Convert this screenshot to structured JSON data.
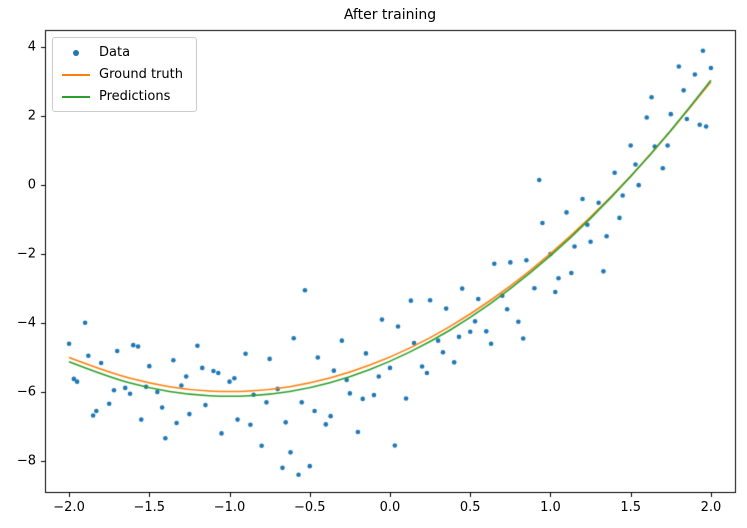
{
  "chart_data": {
    "type": "scatter",
    "title": "After training",
    "grid": false,
    "legend_position": "upper left",
    "xlim": [
      -2.15,
      2.15
    ],
    "ylim": [
      -8.9,
      4.5
    ],
    "xticks": [
      -2.0,
      -1.5,
      -1.0,
      -0.5,
      0.0,
      0.5,
      1.0,
      1.5,
      2.0
    ],
    "xtick_labels": [
      "−2.0",
      "−1.5",
      "−1.0",
      "−0.5",
      "0.0",
      "0.5",
      "1.0",
      "1.5",
      "2.0"
    ],
    "yticks": [
      -8,
      -6,
      -4,
      -2,
      0,
      2,
      4
    ],
    "ytick_labels": [
      "−8",
      "−6",
      "−4",
      "−2",
      "0",
      "2",
      "4"
    ],
    "legend": [
      {
        "label": "Data",
        "marker": "dot",
        "color": "#1f77b4"
      },
      {
        "label": "Ground truth",
        "marker": "line",
        "color": "#ff7f0e"
      },
      {
        "label": "Predictions",
        "marker": "line",
        "color": "#2ca02c"
      }
    ],
    "series": [
      {
        "name": "Data",
        "type": "scatter",
        "color": "#1f77b4",
        "points": [
          [
            -2.0,
            -4.6
          ],
          [
            -1.95,
            -5.7
          ],
          [
            -1.9,
            -3.99
          ],
          [
            -1.85,
            -6.68
          ],
          [
            -1.8,
            -5.16
          ],
          [
            -1.75,
            -6.34
          ],
          [
            -1.7,
            -4.81
          ],
          [
            -1.65,
            -5.88
          ],
          [
            -1.6,
            -4.64
          ],
          [
            -1.55,
            -6.8
          ],
          [
            -1.5,
            -5.25
          ],
          [
            -1.45,
            -6.0
          ],
          [
            -1.4,
            -7.34
          ],
          [
            -1.35,
            -5.08
          ],
          [
            -1.3,
            -5.81
          ],
          [
            -1.25,
            -6.64
          ],
          [
            -1.2,
            -4.66
          ],
          [
            -1.15,
            -6.38
          ],
          [
            -1.1,
            -5.39
          ],
          [
            -1.05,
            -7.2
          ],
          [
            -1.0,
            -5.7
          ],
          [
            -0.95,
            -6.8
          ],
          [
            -0.9,
            -4.89
          ],
          [
            -0.85,
            -6.08
          ],
          [
            -0.8,
            -7.56
          ],
          [
            -0.75,
            -5.04
          ],
          [
            -0.7,
            -5.91
          ],
          [
            -0.65,
            -6.88
          ],
          [
            -0.6,
            -4.44
          ],
          [
            -0.55,
            -6.3
          ],
          [
            -0.5,
            -8.15
          ],
          [
            -0.45,
            -5.0
          ],
          [
            -0.4,
            -6.94
          ],
          [
            -0.35,
            -5.38
          ],
          [
            -0.3,
            -4.51
          ],
          [
            -0.25,
            -6.04
          ],
          [
            -0.2,
            -7.16
          ],
          [
            -0.15,
            -4.88
          ],
          [
            -0.1,
            -6.09
          ],
          [
            -0.05,
            -3.9
          ],
          [
            0.0,
            -5.3
          ],
          [
            0.05,
            -4.1
          ],
          [
            0.1,
            -6.19
          ],
          [
            0.15,
            -4.58
          ],
          [
            0.2,
            -5.26
          ],
          [
            0.25,
            -3.34
          ],
          [
            0.3,
            -4.51
          ],
          [
            0.35,
            -3.58
          ],
          [
            0.4,
            -5.14
          ],
          [
            0.45,
            -3.0
          ],
          [
            0.5,
            -4.25
          ],
          [
            0.55,
            -3.3
          ],
          [
            0.6,
            -4.24
          ],
          [
            0.65,
            -2.28
          ],
          [
            0.7,
            -3.21
          ],
          [
            0.75,
            -2.24
          ],
          [
            0.8,
            -3.96
          ],
          [
            0.85,
            -2.18
          ],
          [
            0.9,
            -2.99
          ],
          [
            0.95,
            -1.1
          ],
          [
            1.0,
            -2.0
          ],
          [
            1.05,
            -2.7
          ],
          [
            1.1,
            -0.79
          ],
          [
            1.15,
            -1.78
          ],
          [
            1.2,
            -0.4
          ],
          [
            1.25,
            -1.64
          ],
          [
            1.3,
            -0.51
          ],
          [
            1.35,
            -1.48
          ],
          [
            1.4,
            0.36
          ],
          [
            1.45,
            -0.3
          ],
          [
            1.5,
            1.15
          ],
          [
            1.55,
            0.0
          ],
          [
            1.6,
            1.96
          ],
          [
            1.65,
            1.12
          ],
          [
            1.7,
            0.49
          ],
          [
            1.75,
            2.06
          ],
          [
            1.8,
            3.44
          ],
          [
            1.85,
            1.92
          ],
          [
            1.9,
            3.21
          ],
          [
            1.95,
            3.9
          ],
          [
            2.0,
            3.4
          ],
          [
            -1.97,
            -5.62
          ],
          [
            -1.88,
            -4.95
          ],
          [
            -1.83,
            -6.55
          ],
          [
            -1.72,
            -5.95
          ],
          [
            -1.62,
            -6.05
          ],
          [
            -1.57,
            -4.68
          ],
          [
            -1.52,
            -5.85
          ],
          [
            -1.42,
            -6.45
          ],
          [
            -1.33,
            -6.9
          ],
          [
            -1.27,
            -5.55
          ],
          [
            -1.17,
            -5.3
          ],
          [
            -1.07,
            -5.45
          ],
          [
            -0.97,
            -5.6
          ],
          [
            -0.87,
            -6.95
          ],
          [
            -0.77,
            -6.3
          ],
          [
            -0.67,
            -8.2
          ],
          [
            -0.62,
            -7.75
          ],
          [
            -0.57,
            -8.4
          ],
          [
            -0.53,
            -3.05
          ],
          [
            -0.47,
            -6.55
          ],
          [
            -0.37,
            -6.7
          ],
          [
            -0.27,
            -5.65
          ],
          [
            -0.17,
            -6.2
          ],
          [
            -0.07,
            -5.55
          ],
          [
            0.03,
            -7.55
          ],
          [
            0.13,
            -3.35
          ],
          [
            0.23,
            -5.45
          ],
          [
            0.33,
            -4.85
          ],
          [
            0.43,
            -4.4
          ],
          [
            0.53,
            -3.95
          ],
          [
            0.63,
            -4.6
          ],
          [
            0.73,
            -3.6
          ],
          [
            0.83,
            -4.45
          ],
          [
            0.93,
            0.15
          ],
          [
            1.03,
            -3.1
          ],
          [
            1.13,
            -2.55
          ],
          [
            1.23,
            -1.15
          ],
          [
            1.33,
            -2.5
          ],
          [
            1.43,
            -0.95
          ],
          [
            1.53,
            0.6
          ],
          [
            1.63,
            2.55
          ],
          [
            1.73,
            1.15
          ],
          [
            1.83,
            2.75
          ],
          [
            1.93,
            1.75
          ],
          [
            1.97,
            1.7
          ]
        ]
      },
      {
        "name": "Ground truth",
        "type": "line",
        "color": "#ff7f0e",
        "formula": "y = x^2 + 2x - 5",
        "points": [
          [
            -2,
            -5
          ],
          [
            -1.75,
            -5.44
          ],
          [
            -1.5,
            -5.75
          ],
          [
            -1.25,
            -5.94
          ],
          [
            -1,
            -6
          ],
          [
            -0.75,
            -5.94
          ],
          [
            -0.5,
            -5.75
          ],
          [
            -0.25,
            -5.44
          ],
          [
            0,
            -5
          ],
          [
            0.25,
            -4.44
          ],
          [
            0.5,
            -3.75
          ],
          [
            0.75,
            -2.94
          ],
          [
            1,
            -2
          ],
          [
            1.25,
            -0.94
          ],
          [
            1.5,
            0.25
          ],
          [
            1.75,
            1.56
          ],
          [
            2,
            3
          ]
        ]
      },
      {
        "name": "Predictions",
        "type": "line",
        "color": "#2ca02c",
        "points": [
          [
            -2,
            -5.12
          ],
          [
            -1.75,
            -5.57
          ],
          [
            -1.5,
            -5.89
          ],
          [
            -1.25,
            -6.08
          ],
          [
            -1,
            -6.14
          ],
          [
            -0.75,
            -6.08
          ],
          [
            -0.5,
            -5.89
          ],
          [
            -0.25,
            -5.57
          ],
          [
            0,
            -5.12
          ],
          [
            0.25,
            -4.55
          ],
          [
            0.5,
            -3.85
          ],
          [
            0.75,
            -3.02
          ],
          [
            1,
            -2.06
          ],
          [
            1.25,
            -0.98
          ],
          [
            1.5,
            0.24
          ],
          [
            1.75,
            1.57
          ],
          [
            2,
            3.04
          ]
        ]
      }
    ]
  }
}
